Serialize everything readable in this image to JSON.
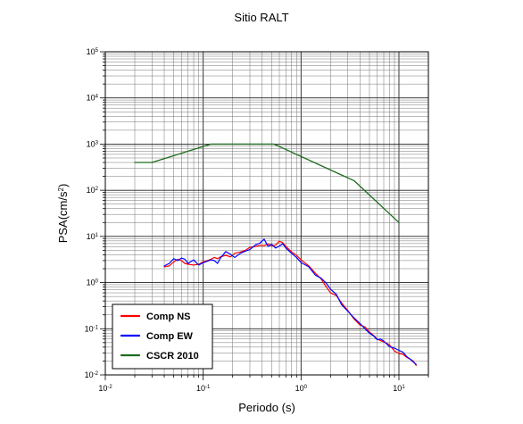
{
  "chart_data": {
    "type": "line",
    "title": "Sitio RALT",
    "xlabel": "Periodo (s)",
    "ylabel": {
      "base": "PSA(cm/s",
      "exp": "2",
      "tail": ")"
    },
    "xscale": "log",
    "yscale": "log",
    "xlim": [
      0.01,
      20
    ],
    "ylim": [
      0.01,
      100000
    ],
    "grid": true,
    "legend_position": "bottom-left",
    "x_ticks": [
      {
        "value": 0.01,
        "base": "10",
        "exp": "-2"
      },
      {
        "value": 0.1,
        "base": "10",
        "exp": "-1"
      },
      {
        "value": 1,
        "base": "10",
        "exp": "0"
      },
      {
        "value": 10,
        "base": "10",
        "exp": "1"
      }
    ],
    "y_ticks": [
      {
        "value": 0.01,
        "base": "10",
        "exp": "-2"
      },
      {
        "value": 0.1,
        "base": "10",
        "exp": "-1"
      },
      {
        "value": 1,
        "base": "10",
        "exp": "0"
      },
      {
        "value": 10,
        "base": "10",
        "exp": "1"
      },
      {
        "value": 100,
        "base": "10",
        "exp": "2"
      },
      {
        "value": 1000,
        "base": "10",
        "exp": "3"
      },
      {
        "value": 10000,
        "base": "10",
        "exp": "4"
      },
      {
        "value": 100000,
        "base": "10",
        "exp": "5"
      }
    ],
    "series": [
      {
        "name": "Comp NS",
        "color": "#ff0000",
        "x": [
          0.04,
          0.045,
          0.05,
          0.055,
          0.06,
          0.065,
          0.07,
          0.08,
          0.09,
          0.1,
          0.11,
          0.12,
          0.13,
          0.14,
          0.15,
          0.17,
          0.19,
          0.21,
          0.24,
          0.27,
          0.3,
          0.34,
          0.38,
          0.42,
          0.46,
          0.5,
          0.55,
          0.6,
          0.65,
          0.7,
          0.8,
          0.9,
          1.0,
          1.2,
          1.4,
          1.6,
          1.8,
          2.0,
          2.3,
          2.6,
          3.0,
          3.5,
          4.0,
          4.5,
          5.0,
          5.5,
          6.0,
          6.5,
          7.0,
          8.0,
          9.0,
          10.0,
          11.0,
          12.0,
          13.0,
          14.0,
          15.0
        ],
        "y": [
          2.2,
          2.3,
          2.8,
          3.2,
          3.0,
          2.6,
          2.5,
          2.4,
          2.5,
          2.8,
          3.0,
          3.2,
          3.5,
          3.3,
          3.6,
          3.9,
          3.6,
          4.3,
          4.6,
          5.0,
          5.8,
          6.0,
          6.4,
          6.3,
          6.9,
          6.2,
          6.5,
          7.9,
          7.3,
          6.1,
          4.6,
          3.9,
          3.1,
          2.3,
          1.6,
          1.2,
          0.82,
          0.6,
          0.52,
          0.36,
          0.25,
          0.16,
          0.12,
          0.11,
          0.085,
          0.072,
          0.06,
          0.055,
          0.052,
          0.045,
          0.033,
          0.029,
          0.028,
          0.024,
          0.022,
          0.02,
          0.016
        ]
      },
      {
        "name": "Comp EW",
        "color": "#0000ff",
        "x": [
          0.04,
          0.045,
          0.05,
          0.055,
          0.06,
          0.065,
          0.07,
          0.08,
          0.09,
          0.1,
          0.11,
          0.12,
          0.13,
          0.14,
          0.15,
          0.17,
          0.19,
          0.21,
          0.24,
          0.27,
          0.3,
          0.34,
          0.38,
          0.42,
          0.46,
          0.5,
          0.55,
          0.6,
          0.65,
          0.7,
          0.8,
          0.9,
          1.0,
          1.2,
          1.4,
          1.6,
          1.8,
          2.0,
          2.3,
          2.6,
          3.0,
          3.5,
          4.0,
          4.5,
          5.0,
          5.5,
          6.0,
          6.5,
          7.0,
          8.0,
          9.0,
          10.0,
          11.0,
          12.0,
          13.0,
          14.0,
          15.0
        ],
        "y": [
          2.3,
          2.6,
          3.3,
          3.0,
          3.4,
          3.2,
          2.6,
          3.1,
          2.4,
          2.7,
          2.9,
          3.1,
          3.0,
          2.6,
          3.4,
          4.7,
          4.1,
          3.5,
          4.3,
          4.8,
          5.2,
          6.5,
          7.2,
          8.7,
          6.1,
          6.8,
          5.6,
          6.2,
          6.9,
          5.6,
          4.3,
          3.5,
          2.7,
          2.2,
          1.45,
          1.25,
          0.98,
          0.72,
          0.55,
          0.33,
          0.24,
          0.17,
          0.13,
          0.1,
          0.08,
          0.07,
          0.058,
          0.06,
          0.054,
          0.041,
          0.038,
          0.034,
          0.031,
          0.025,
          0.022,
          0.019,
          0.017
        ]
      },
      {
        "name": "CSCR 2010",
        "color": "#1e6b1e",
        "x": [
          0.02,
          0.03,
          0.12,
          0.53,
          3.5,
          10.0
        ],
        "y": [
          400,
          400,
          1000,
          1000,
          160,
          20
        ]
      }
    ]
  }
}
